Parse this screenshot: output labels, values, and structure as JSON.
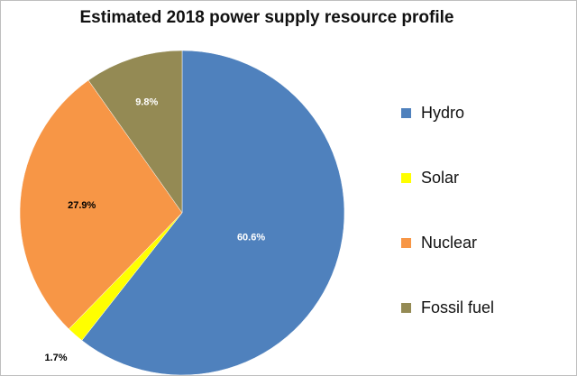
{
  "chart_data": {
    "type": "pie",
    "title": "Estimated 2018 power supply resource profile",
    "categories": [
      "Hydro",
      "Solar",
      "Nuclear",
      "Fossil fuel"
    ],
    "values": [
      60.6,
      1.7,
      27.9,
      9.8
    ],
    "value_labels": [
      "60.6%",
      "1.7%",
      "27.9%",
      "9.8%"
    ],
    "colors": [
      "#4f81bd",
      "#ffff00",
      "#f79646",
      "#948a54"
    ],
    "label_colors": [
      "#ffffff",
      "#000000",
      "#000000",
      "#ffffff"
    ],
    "start_angle_deg": 0,
    "direction": "clockwise",
    "legend_placement": "right"
  }
}
